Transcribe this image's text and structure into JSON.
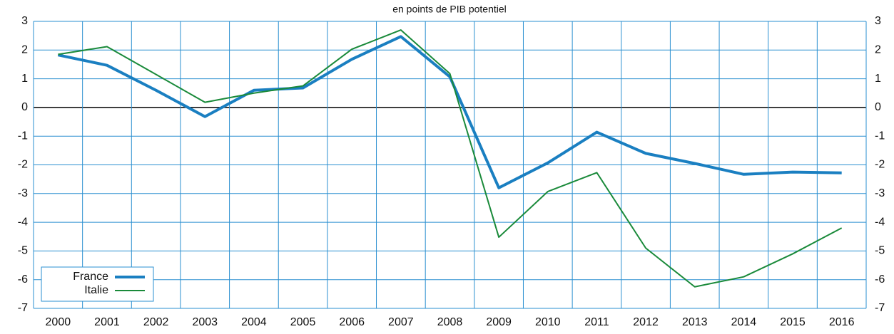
{
  "chart_data": {
    "type": "line",
    "subtitle": "en points de PIB potentiel",
    "categories": [
      "2000",
      "2001",
      "2002",
      "2003",
      "2004",
      "2005",
      "2006",
      "2007",
      "2008",
      "2009",
      "2010",
      "2011",
      "2012",
      "2013",
      "2014",
      "2015",
      "2016"
    ],
    "series": [
      {
        "name": "France",
        "color": "#1a7fc1",
        "values": [
          1.83,
          1.47,
          0.6,
          -0.32,
          0.6,
          0.68,
          1.68,
          2.47,
          1.07,
          -2.8,
          -1.93,
          -0.86,
          -1.6,
          -1.95,
          -2.33,
          -2.25,
          -2.28
        ]
      },
      {
        "name": "Italie",
        "color": "#1a8a3a",
        "values": [
          1.85,
          2.12,
          1.15,
          0.18,
          0.5,
          0.75,
          2.03,
          2.7,
          1.18,
          -4.52,
          -2.93,
          -2.27,
          -4.9,
          -6.25,
          -5.9,
          -5.1,
          -4.2
        ]
      }
    ],
    "ylim": [
      -7,
      3
    ],
    "yticks": [
      -7,
      -6,
      -5,
      -4,
      -3,
      -2,
      -1,
      0,
      1,
      2,
      3
    ],
    "grid": true,
    "legend": "bottom-left"
  }
}
